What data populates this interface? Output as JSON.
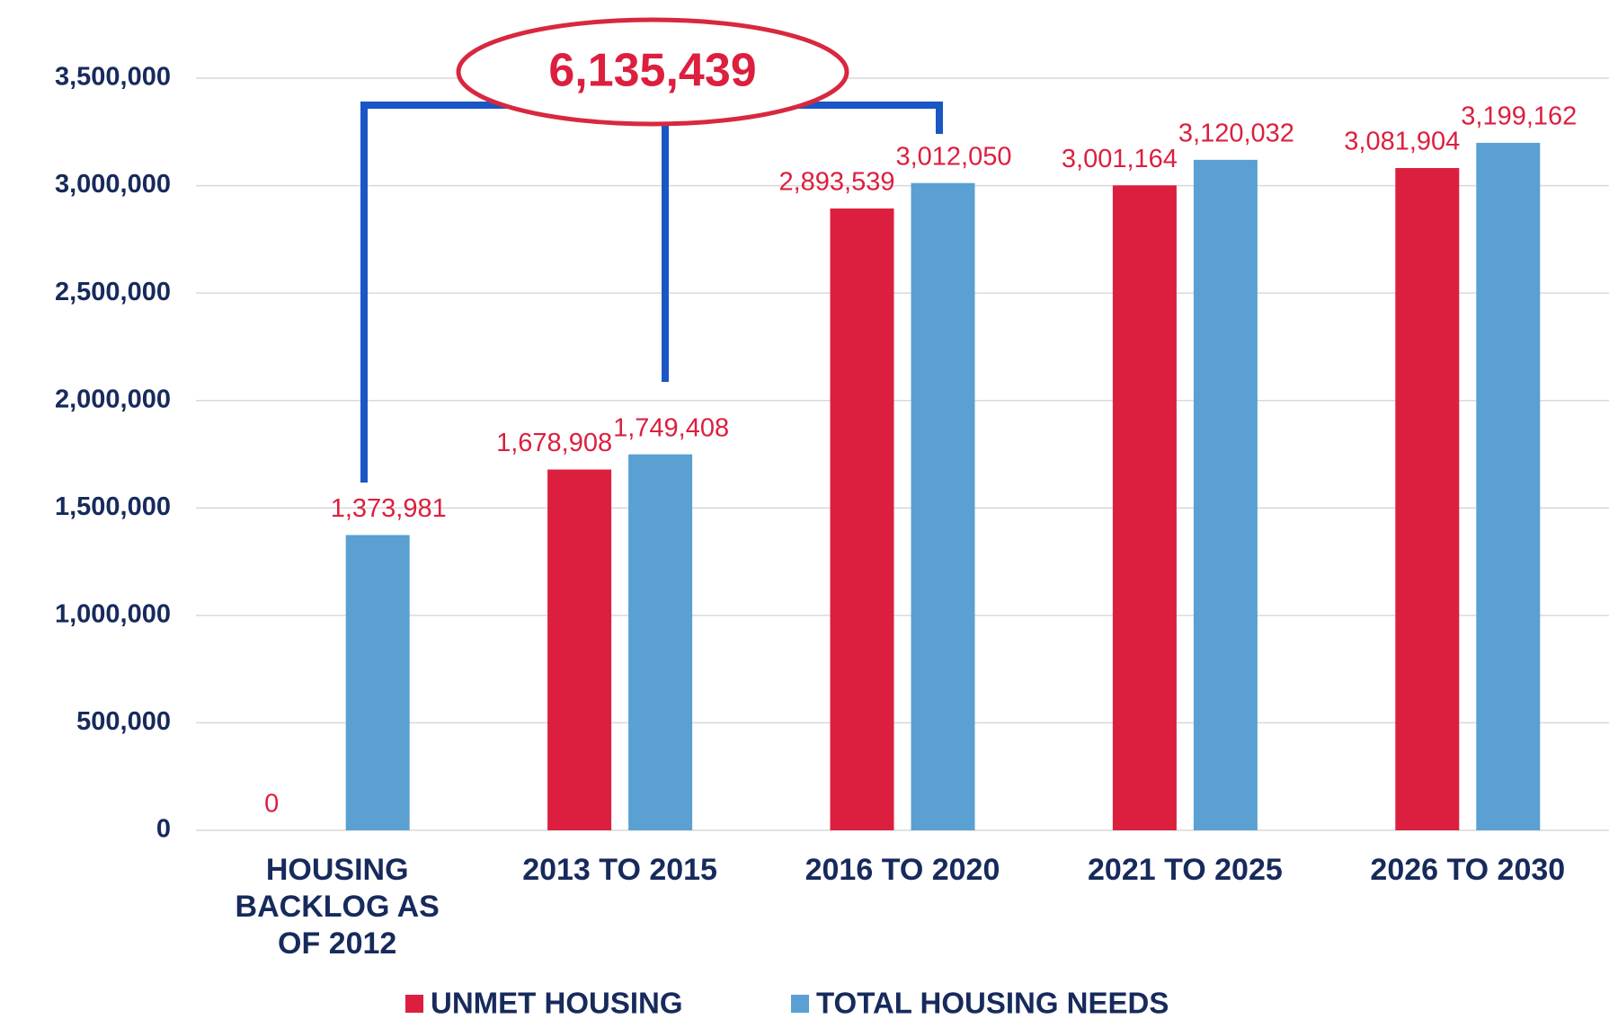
{
  "chart_data": {
    "type": "bar",
    "annotation": "6,135,439",
    "categories": [
      "HOUSING\nBACKLOG AS\nOF 2012",
      "2013 TO  2015",
      "2016 TO 2020",
      "2021 TO 2025",
      "2026 TO 2030"
    ],
    "series": [
      {
        "name": "UNMET HOUSING",
        "color": "#dc1f3f",
        "values": [
          0,
          1678908,
          2893539,
          3001164,
          3081904
        ],
        "value_labels": [
          "0",
          "1,678,908",
          "2,893,539",
          "3,001,164",
          "3,081,904"
        ]
      },
      {
        "name": "TOTAL HOUSING NEEDS",
        "color": "#5aa0d2",
        "values": [
          1373981,
          1749408,
          3012050,
          3120032,
          3199162
        ],
        "value_labels": [
          "1,373,981",
          "1,749,408",
          "3,012,050",
          "3,120,032",
          "3,199,162"
        ]
      }
    ],
    "ylim": [
      0,
      3500000
    ],
    "yticks": [
      0,
      {
        "value": 500000,
        "label": "500,000"
      },
      {
        "value": 1000000,
        "label": "1,000,000"
      },
      {
        "value": 1500000,
        "label": "1,500,000"
      },
      {
        "value": 2000000,
        "label": "2,000,000"
      },
      {
        "value": 2500000,
        "label": "2,500,000"
      },
      {
        "value": 3000000,
        "label": "3,000,000"
      },
      {
        "value": 3500000,
        "label": "3,500,000"
      }
    ],
    "grid": true,
    "legend": "bottom"
  }
}
